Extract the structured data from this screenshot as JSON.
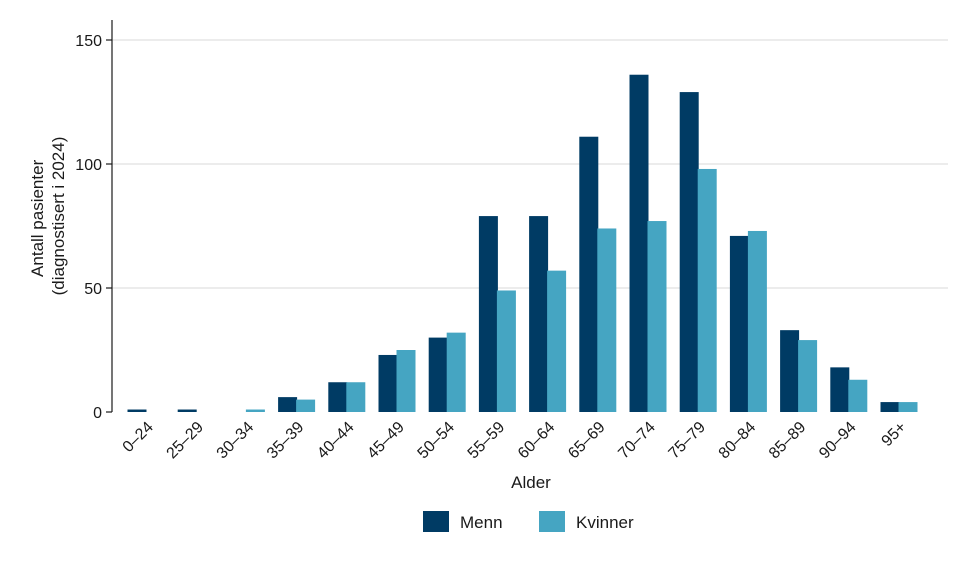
{
  "chart_data": {
    "type": "bar",
    "title": "",
    "xlabel": "Alder",
    "ylabel_lines": [
      "Antall pasienter",
      "(diagnostisert i 2024)"
    ],
    "ylim": [
      0,
      150
    ],
    "yticks": [
      0,
      50,
      100,
      150
    ],
    "grid": true,
    "legend_position": "bottom",
    "categories": [
      "0–24",
      "25–29",
      "30–34",
      "35–39",
      "40–44",
      "45–49",
      "50–54",
      "55–59",
      "60–64",
      "65–69",
      "70–74",
      "75–79",
      "80–84",
      "85–89",
      "90–94",
      "95+"
    ],
    "series": [
      {
        "name": "Menn",
        "color": "#003b64",
        "values": [
          1,
          1,
          0,
          6,
          12,
          23,
          30,
          79,
          79,
          111,
          136,
          129,
          71,
          33,
          18,
          4
        ]
      },
      {
        "name": "Kvinner",
        "color": "#45a5c2",
        "values": [
          0,
          0,
          1,
          5,
          12,
          25,
          32,
          49,
          57,
          74,
          77,
          98,
          73,
          29,
          13,
          4
        ]
      }
    ]
  }
}
